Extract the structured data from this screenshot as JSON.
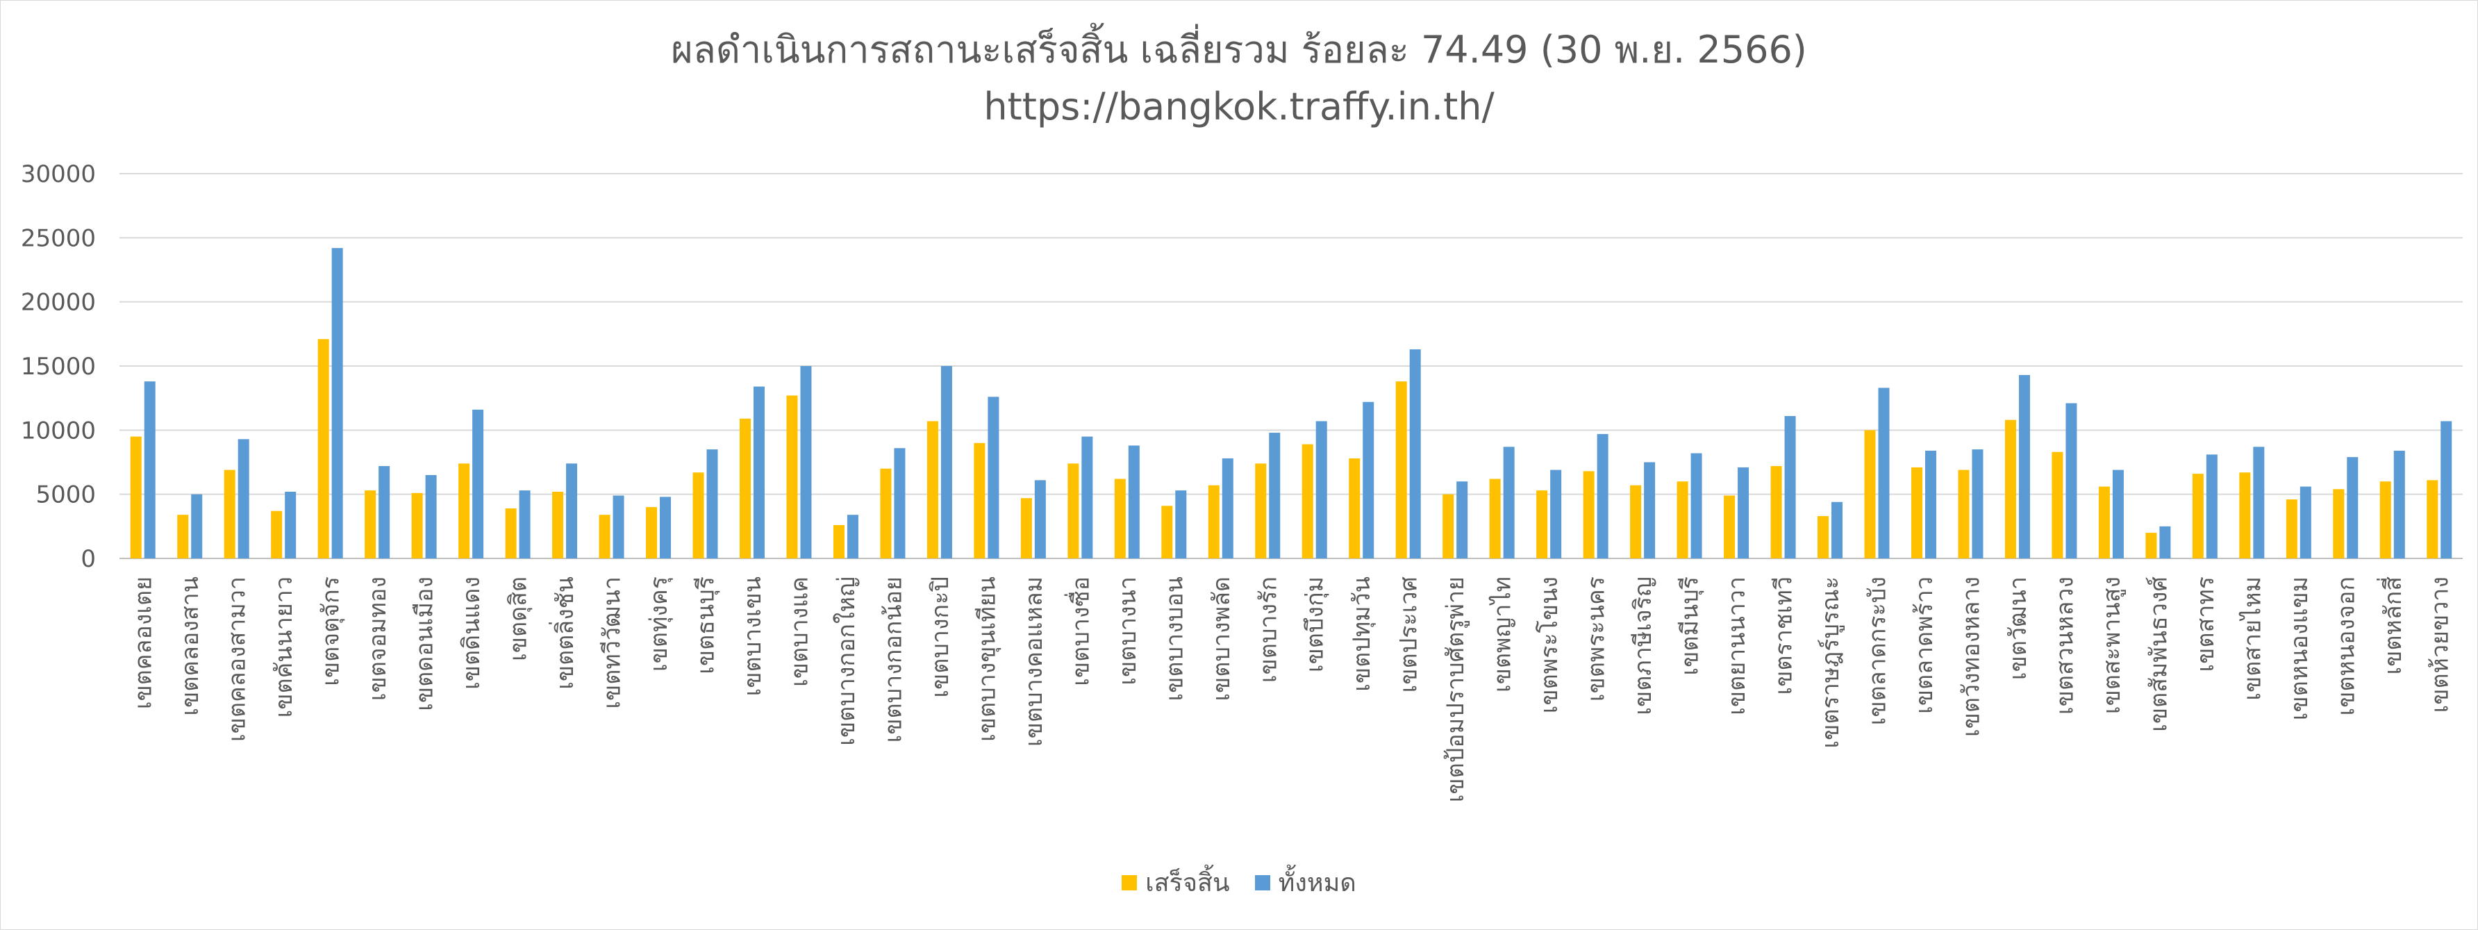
{
  "title": "ผลดำเนินการสถานะเสร็จสิ้น เฉลี่ยรวม ร้อยละ 74.49 (30 พ.ย. 2566)",
  "subtitle": "https://bangkok.traffy.in.th/",
  "colors": {
    "done": "#FFC000",
    "total": "#5B9BD5",
    "grid": "#D9D9D9",
    "text": "#595959"
  },
  "chart_data": {
    "type": "bar",
    "title": "ผลดำเนินการสถานะเสร็จสิ้น เฉลี่ยรวม ร้อยละ 74.49 (30 พ.ย. 2566)",
    "subtitle": "https://bangkok.traffy.in.th/",
    "ylim": [
      0,
      30000
    ],
    "yticks": [
      0,
      5000,
      10000,
      15000,
      20000,
      25000,
      30000
    ],
    "grid": true,
    "legend_position": "bottom",
    "categories": [
      "เขตคลองเตย",
      "เขตคลองสาน",
      "เขตคลองสามวา",
      "เขตคันนายาว",
      "เขตจตุจักร",
      "เขตจอมทอง",
      "เขตดอนเมือง",
      "เขตดินแดง",
      "เขตดุสิต",
      "เขตตลิ่งชัน",
      "เขตทวีวัฒนา",
      "เขตทุ่งครุ",
      "เขตธนบุรี",
      "เขตบางเขน",
      "เขตบางแค",
      "เขตบางกอกใหญ่",
      "เขตบางกอกน้อย",
      "เขตบางกะปิ",
      "เขตบางขุนเทียน",
      "เขตบางคอแหลม",
      "เขตบางซื่อ",
      "เขตบางนา",
      "เขตบางบอน",
      "เขตบางพลัด",
      "เขตบางรัก",
      "เขตบึงกุ่ม",
      "เขตปทุมวัน",
      "เขตประเวศ",
      "เขตป้อมปราบศัตรูพ่าย",
      "เขตพญาไท",
      "เขตพระโขนง",
      "เขตพระนคร",
      "เขตภาษีเจริญ",
      "เขตมีนบุรี",
      "เขตยานนาวา",
      "เขตราชเทวี",
      "เขตราษฎร์บูรณะ",
      "เขตลาดกระบัง",
      "เขตลาดพร้าว",
      "เขตวังทองหลาง",
      "เขตวัฒนา",
      "เขตสวนหลวง",
      "เขตสะพานสูง",
      "เขตสัมพันธวงศ์",
      "เขตสาทร",
      "เขตสายไหม",
      "เขตหนองแขม",
      "เขตหนองจอก",
      "เขตหลักสี่",
      "เขตห้วยขวาง"
    ],
    "series": [
      {
        "name": "เสร็จสิ้น",
        "color": "#FFC000",
        "values": [
          9500,
          3400,
          6900,
          3700,
          17100,
          5300,
          5100,
          7400,
          3900,
          5200,
          3400,
          4000,
          6700,
          10900,
          12700,
          2600,
          7000,
          10700,
          9000,
          4700,
          7400,
          6200,
          4100,
          5700,
          7400,
          8900,
          7800,
          13800,
          5000,
          6200,
          5300,
          6800,
          5700,
          6000,
          4900,
          7200,
          3300,
          10000,
          7100,
          6900,
          10800,
          8300,
          5600,
          2000,
          6600,
          6700,
          4600,
          5400,
          6000,
          6100
        ]
      },
      {
        "name": "ทั้งหมด",
        "color": "#5B9BD5",
        "values": [
          13800,
          5000,
          9300,
          5200,
          24200,
          7200,
          6500,
          11600,
          5300,
          7400,
          4900,
          4800,
          8500,
          13400,
          15000,
          3400,
          8600,
          15000,
          12600,
          6100,
          9500,
          8800,
          5300,
          7800,
          9800,
          10700,
          12200,
          16300,
          6000,
          8700,
          6900,
          9700,
          7500,
          8200,
          7100,
          11100,
          4400,
          13300,
          8400,
          8500,
          14300,
          12100,
          6900,
          2500,
          8100,
          8700,
          5600,
          7900,
          8400,
          10700
        ]
      }
    ]
  },
  "legend": [
    {
      "label": "เสร็จสิ้น",
      "color": "#FFC000"
    },
    {
      "label": "ทั้งหมด",
      "color": "#5B9BD5"
    }
  ]
}
